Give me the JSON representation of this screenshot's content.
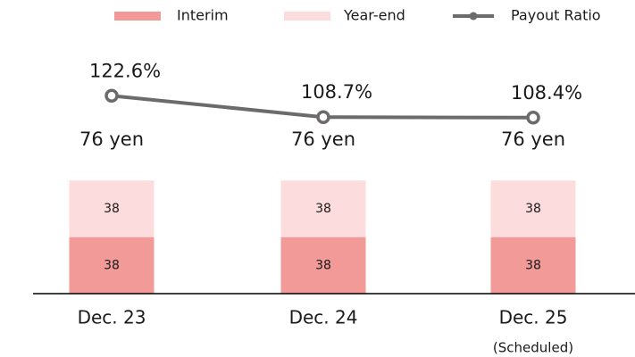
{
  "chart_data": {
    "type": "stacked-bar-line",
    "categories": [
      "Dec. 23",
      "Dec. 24",
      "Dec. 25"
    ],
    "category_notes": [
      null,
      null,
      "(Scheduled)"
    ],
    "series": [
      {
        "name": "Interim",
        "color": "#f19a97",
        "values": [
          38,
          38,
          38
        ]
      },
      {
        "name": "Year-end",
        "color": "#fcdcdc",
        "values": [
          38,
          38,
          38
        ]
      },
      {
        "name": "Payout Ratio",
        "color": "#6d6a6a",
        "axis": "y2",
        "values": [
          122.6,
          108.7,
          108.4
        ],
        "value_labels": [
          "122.6%",
          "108.7%",
          "108.4%"
        ]
      }
    ],
    "total_labels": [
      "76 yen",
      "76 yen",
      "76 yen"
    ],
    "ylim": [
      0,
      180
    ],
    "y2lim": [
      -6,
      168
    ]
  }
}
